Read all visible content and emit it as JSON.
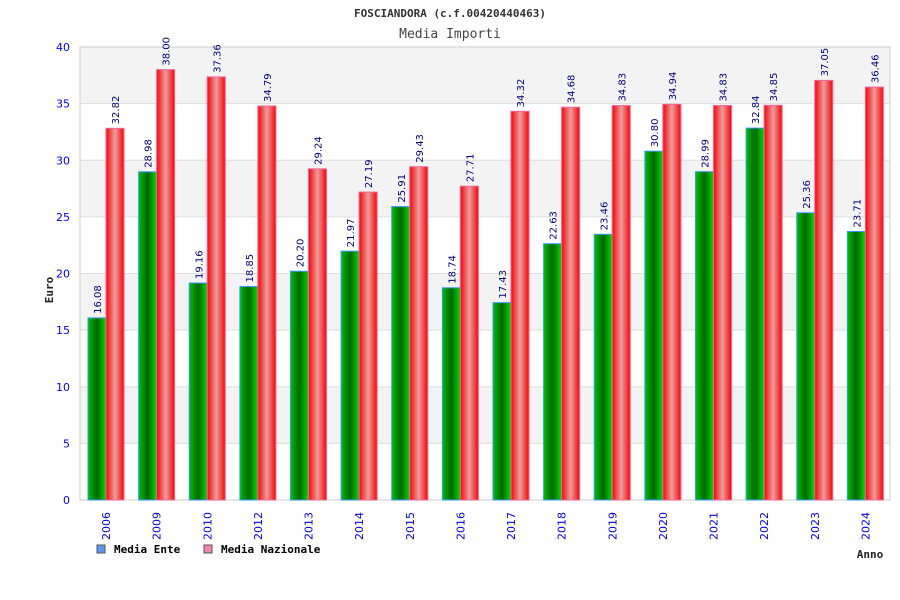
{
  "chart_data": {
    "type": "bar",
    "title": "FOSCIANDORA (c.f.00420440463)",
    "subtitle": "Media Importi",
    "xlabel": "Anno",
    "ylabel": "Euro",
    "ylim": [
      0,
      40
    ],
    "yticks": [
      0,
      5,
      10,
      15,
      20,
      25,
      30,
      35,
      40
    ],
    "categories": [
      "2006",
      "2009",
      "2010",
      "2012",
      "2013",
      "2014",
      "2015",
      "2016",
      "2017",
      "2018",
      "2019",
      "2020",
      "2021",
      "2022",
      "2023",
      "2024"
    ],
    "series": [
      {
        "name": "Media Ente",
        "color": "#00aa00",
        "legend_color": "#5599ee",
        "values": [
          16.08,
          28.98,
          19.16,
          18.85,
          20.2,
          21.97,
          25.91,
          18.74,
          17.43,
          22.63,
          23.46,
          30.8,
          28.99,
          32.84,
          25.36,
          23.71
        ]
      },
      {
        "name": "Media Nazionale",
        "color": "#ff0000",
        "legend_color": "#ee88aa",
        "values": [
          32.82,
          38.0,
          37.36,
          34.79,
          29.24,
          27.19,
          29.43,
          27.71,
          34.32,
          34.68,
          34.83,
          34.94,
          34.83,
          34.85,
          37.05,
          36.46
        ]
      }
    ],
    "grid": true,
    "legend": "bottom-left"
  }
}
